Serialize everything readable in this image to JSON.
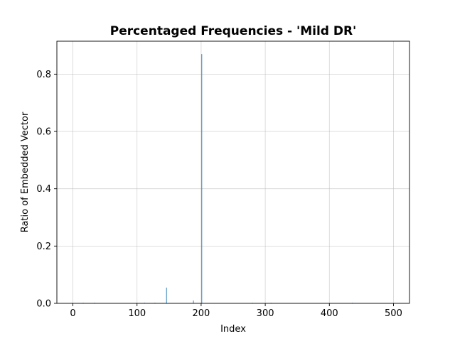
{
  "chart_data": {
    "type": "bar",
    "title": "Percentaged Frequencies - 'Mild DR'",
    "xlabel": "Index",
    "ylabel": "Ratio of Embedded Vector",
    "xlim": [
      -25,
      525
    ],
    "ylim": [
      0,
      0.915
    ],
    "xticks": [
      0,
      100,
      200,
      300,
      400,
      500
    ],
    "xtick_labels": [
      "0",
      "100",
      "200",
      "300",
      "400",
      "500"
    ],
    "yticks": [
      0.0,
      0.2,
      0.4,
      0.6,
      0.8
    ],
    "ytick_labels": [
      "0.0",
      "0.2",
      "0.4",
      "0.6",
      "0.8"
    ],
    "grid": true,
    "color": "#1f77b4",
    "bars": [
      {
        "x": 16,
        "y": 0.002
      },
      {
        "x": 34,
        "y": 0.002
      },
      {
        "x": 112,
        "y": 0.002
      },
      {
        "x": 128,
        "y": 0.002
      },
      {
        "x": 146,
        "y": 0.055
      },
      {
        "x": 188,
        "y": 0.01
      },
      {
        "x": 201,
        "y": 0.87
      },
      {
        "x": 280,
        "y": 0.002
      },
      {
        "x": 309,
        "y": 0.002
      },
      {
        "x": 436,
        "y": 0.002
      }
    ]
  }
}
